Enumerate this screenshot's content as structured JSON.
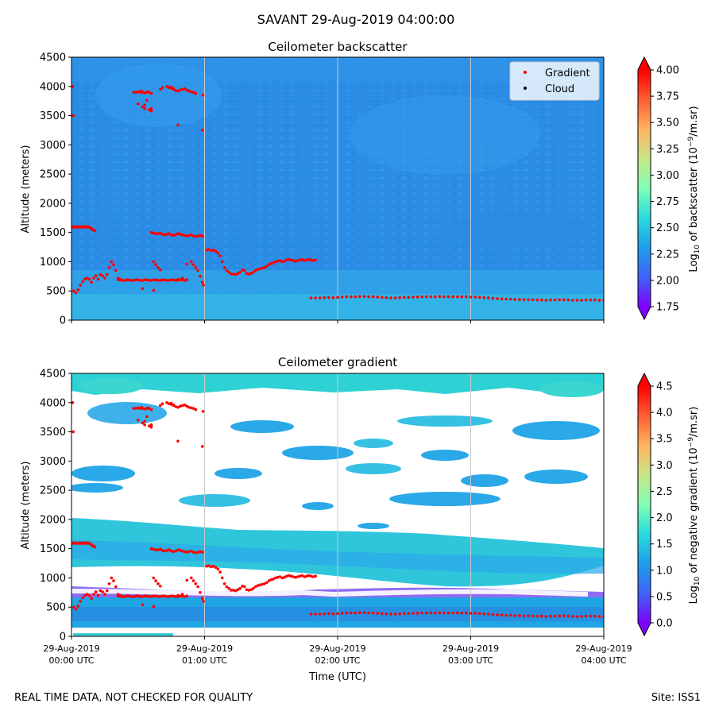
{
  "figure": {
    "suptitle": "SAVANT 29-Aug-2019 04:00:00",
    "footer_left": "REAL TIME DATA, NOT CHECKED FOR QUALITY",
    "footer_right": "Site: ISS1",
    "xlabel": "Time (UTC)"
  },
  "chart_data": [
    {
      "type": "heatmap",
      "title": "Ceilometer backscatter",
      "ylabel": "Altitude (meters)",
      "ylim": [
        0,
        4500
      ],
      "yticks": [
        "0",
        "500",
        "1000",
        "1500",
        "2000",
        "2500",
        "3000",
        "3500",
        "4000",
        "4500"
      ],
      "xticks": [
        {
          "date": "29-Aug-2019",
          "time": "00:00 UTC"
        },
        {
          "date": "29-Aug-2019",
          "time": "01:00 UTC"
        },
        {
          "date": "29-Aug-2019",
          "time": "02:00 UTC"
        },
        {
          "date": "29-Aug-2019",
          "time": "03:00 UTC"
        },
        {
          "date": "29-Aug-2019",
          "time": "04:00 UTC"
        }
      ],
      "colorbar": {
        "label": "Log10 of backscatter (10^-9/m.sr)",
        "range": [
          1.75,
          4.0
        ],
        "ticks": [
          "1.75",
          "2.00",
          "2.25",
          "2.50",
          "2.75",
          "3.00",
          "3.25",
          "3.50",
          "3.75",
          "4.00"
        ]
      },
      "legend": {
        "placement": "upper-right",
        "entries": [
          "Gradient",
          "Cloud"
        ]
      },
      "field_note_levels": {
        "near_surface": 2.5,
        "background": 2.3
      }
    },
    {
      "type": "heatmap",
      "title": "Ceilometer gradient",
      "ylabel": "Altitude (meters)",
      "ylim": [
        0,
        4500
      ],
      "yticks": [
        "0",
        "500",
        "1000",
        "1500",
        "2000",
        "2500",
        "3000",
        "3500",
        "4000",
        "4500"
      ],
      "colorbar": {
        "label": "Log10 of negative gradient (10^-9/m.sr)",
        "range": [
          0.0,
          4.5
        ],
        "ticks": [
          "0.0",
          "0.5",
          "1.0",
          "1.5",
          "2.0",
          "2.5",
          "3.0",
          "3.5",
          "4.0",
          "4.5"
        ]
      }
    }
  ],
  "gradient_points": {
    "series": "Gradient",
    "time_unit": "minutes after 00:00 UTC",
    "x": [
      0.5,
      1,
      1.5,
      2,
      2.5,
      3,
      3.5,
      4,
      4.5,
      5,
      5.5,
      6,
      6.5,
      7,
      7.5,
      8,
      8.5,
      9,
      9.5,
      10,
      10.5,
      1,
      2,
      3,
      4,
      5,
      6,
      7,
      8,
      9,
      10,
      11,
      12,
      13,
      14,
      15,
      16,
      17,
      18,
      19,
      20,
      21,
      22,
      0.5,
      0.8,
      21,
      22,
      23,
      24,
      25,
      26,
      27,
      28,
      29,
      30,
      31,
      32,
      33,
      34,
      35,
      36,
      37,
      38,
      39,
      40,
      41,
      42,
      43,
      44,
      45,
      46,
      47,
      48,
      49,
      50,
      51,
      52,
      28,
      29,
      30,
      31,
      31.5,
      32,
      33,
      34,
      34.5,
      35,
      36,
      30,
      32,
      33,
      40,
      41,
      43,
      45,
      46,
      33,
      35,
      36,
      34,
      36,
      48,
      36,
      37,
      38,
      39,
      40,
      41,
      42,
      43,
      44,
      45,
      46,
      47,
      48,
      49,
      50,
      51,
      52,
      53,
      54,
      55,
      56,
      57,
      58,
      59,
      37,
      38,
      39,
      40,
      44,
      45,
      46,
      47,
      48,
      49,
      50,
      51,
      52,
      53,
      54,
      55,
      56,
      32,
      37,
      48,
      50,
      52,
      54,
      55,
      56,
      57,
      58,
      59,
      59.5,
      59,
      59.3,
      61,
      62,
      63,
      64,
      65,
      66,
      67,
      68,
      69,
      70,
      71,
      72,
      73,
      74,
      75,
      76,
      77,
      78,
      79,
      80,
      81,
      82,
      83,
      84,
      85,
      86,
      87,
      88,
      89,
      90,
      91,
      92,
      93,
      94,
      95,
      96,
      97,
      98,
      99,
      100,
      101,
      102,
      103,
      104,
      105,
      106,
      107,
      108,
      109,
      110,
      108,
      110,
      112,
      114,
      116,
      118,
      120,
      122,
      124,
      126,
      128,
      130,
      132,
      134,
      136,
      138,
      140,
      142,
      144,
      146,
      148,
      150,
      152,
      154,
      156,
      158,
      160,
      162,
      164,
      166,
      168,
      170,
      172,
      174,
      176,
      178,
      180,
      182,
      184,
      186,
      188,
      190,
      192,
      194,
      196,
      198,
      200,
      202,
      204,
      206,
      208,
      210,
      212,
      214,
      216,
      218,
      220,
      222,
      224,
      226,
      228,
      230,
      232,
      234,
      236,
      238,
      240
    ],
    "y": [
      1590,
      1600,
      1590,
      1600,
      1590,
      1590,
      1600,
      1590,
      1600,
      1590,
      1600,
      1590,
      1600,
      1590,
      1600,
      1590,
      1580,
      1570,
      1550,
      1540,
      1530,
      500,
      470,
      520,
      600,
      660,
      700,
      720,
      700,
      650,
      720,
      760,
      700,
      780,
      760,
      720,
      780,
      900,
      1000,
      950,
      850,
      720,
      690,
      4000,
      3500,
      690,
      700,
      680,
      680,
      690,
      690,
      680,
      680,
      690,
      690,
      680,
      680,
      690,
      690,
      680,
      680,
      690,
      690,
      680,
      680,
      690,
      690,
      680,
      680,
      690,
      690,
      680,
      680,
      690,
      690,
      680,
      690,
      3900,
      3900,
      3910,
      3900,
      3920,
      3900,
      3890,
      3900,
      3910,
      3900,
      3880,
      3700,
      3650,
      3620,
      3950,
      3980,
      4000,
      3990,
      3960,
      3680,
      3600,
      3580,
      3760,
      3620,
      3340,
      1500,
      1490,
      1480,
      1480,
      1490,
      1470,
      1460,
      1470,
      1480,
      1460,
      1450,
      1460,
      1480,
      1470,
      1460,
      1450,
      1440,
      1450,
      1460,
      1440,
      1430,
      1440,
      1450,
      1440,
      1000,
      950,
      900,
      860,
      3980,
      3970,
      3950,
      3930,
      3920,
      3940,
      3950,
      3960,
      3940,
      3920,
      3910,
      3900,
      3880,
      540,
      510,
      700,
      720,
      960,
      1000,
      950,
      900,
      850,
      750,
      650,
      600,
      3250,
      3850,
      1200,
      1210,
      1190,
      1200,
      1180,
      1150,
      1100,
      1000,
      900,
      850,
      820,
      790,
      790,
      780,
      800,
      820,
      860,
      850,
      800,
      790,
      800,
      820,
      850,
      870,
      880,
      890,
      900,
      920,
      950,
      970,
      980,
      1000,
      1010,
      1020,
      1000,
      1010,
      1030,
      1040,
      1030,
      1020,
      1010,
      1020,
      1030,
      1040,
      1020,
      1030,
      1040,
      1030,
      1020,
      1030,
      380,
      380,
      380,
      385,
      390,
      385,
      390,
      395,
      400,
      400,
      400,
      405,
      405,
      400,
      400,
      395,
      390,
      385,
      380,
      380,
      385,
      390,
      390,
      395,
      395,
      400,
      400,
      400,
      400,
      405,
      400,
      400,
      400,
      400,
      400,
      400,
      395,
      395,
      390,
      385,
      380,
      375,
      370,
      365,
      360,
      360,
      355,
      355,
      350,
      350,
      350,
      345,
      345,
      340,
      345,
      345,
      350,
      350,
      345,
      340,
      340,
      340,
      345,
      345,
      345,
      340,
      340
    ]
  }
}
